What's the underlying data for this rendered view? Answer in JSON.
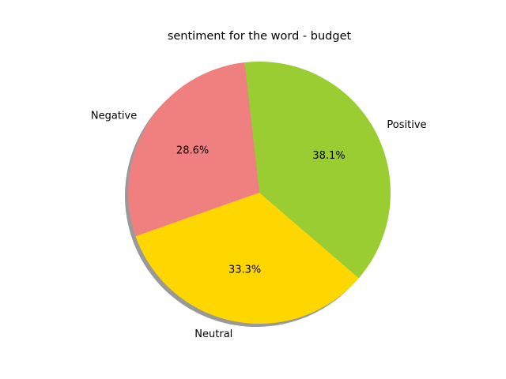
{
  "chart_data": {
    "type": "pie",
    "title": "sentiment for the word - budget",
    "slices": [
      {
        "label": "Positive",
        "value": 38.1,
        "pct_text": "38.1%",
        "color": "#9acd32"
      },
      {
        "label": "Negative",
        "value": 28.6,
        "pct_text": "28.6%",
        "color": "#f08080"
      },
      {
        "label": "Neutral",
        "value": 33.3,
        "pct_text": "33.3%",
        "color": "#ffd700"
      }
    ],
    "shadow": true,
    "legend": "none"
  }
}
